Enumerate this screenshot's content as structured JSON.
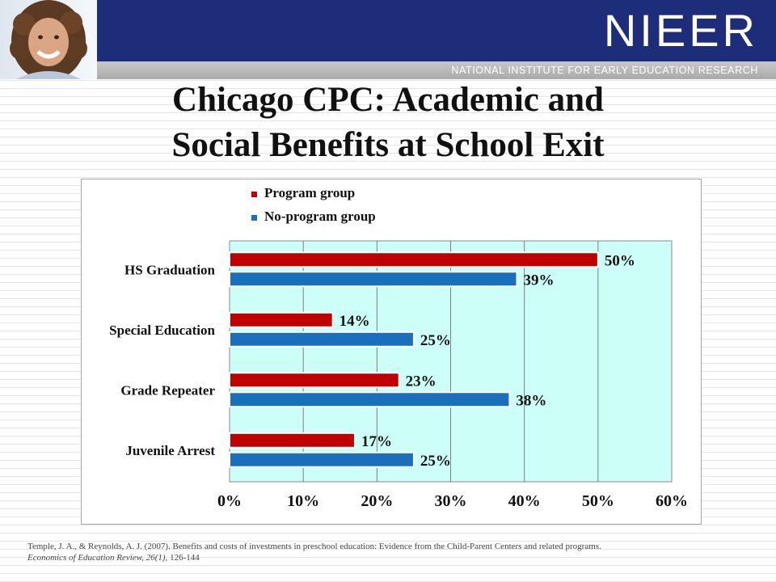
{
  "header": {
    "logo": "NIEER",
    "subtitle": "NATIONAL INSTITUTE FOR EARLY EDUCATION RESEARCH",
    "navy_color": "#1e2d7a"
  },
  "slide": {
    "title_line1": "Chicago CPC: Academic and",
    "title_line2": "Social Benefits at School Exit"
  },
  "chart_data": {
    "type": "bar",
    "orientation": "horizontal",
    "categories": [
      "HS Graduation",
      "Special Education",
      "Grade Repeater",
      "Juvenile Arrest"
    ],
    "series": [
      {
        "name": "Program group",
        "color": "#c00000",
        "values": [
          50,
          14,
          23,
          17
        ],
        "labels": [
          "50%",
          "14%",
          "23%",
          "17%"
        ]
      },
      {
        "name": "No-program group",
        "color": "#1a6fbd",
        "values": [
          39,
          25,
          38,
          25
        ],
        "labels": [
          "39%",
          "25%",
          "38%",
          "25%"
        ]
      }
    ],
    "x_ticks": [
      "0%",
      "10%",
      "20%",
      "30%",
      "40%",
      "50%",
      "60%"
    ],
    "xlim": [
      0,
      60
    ],
    "grid": true,
    "plot_background": "#ccfff7",
    "legend_position": "top"
  },
  "citation": {
    "line1": "Temple, J. A., & Reynolds, A. J.  (2007). Benefits and costs of investments in preschool education:  Evidence from the Child-Parent Centers and related programs.",
    "journal": "Economics of Education Review, 26(1),",
    "pages": " 126-144"
  }
}
